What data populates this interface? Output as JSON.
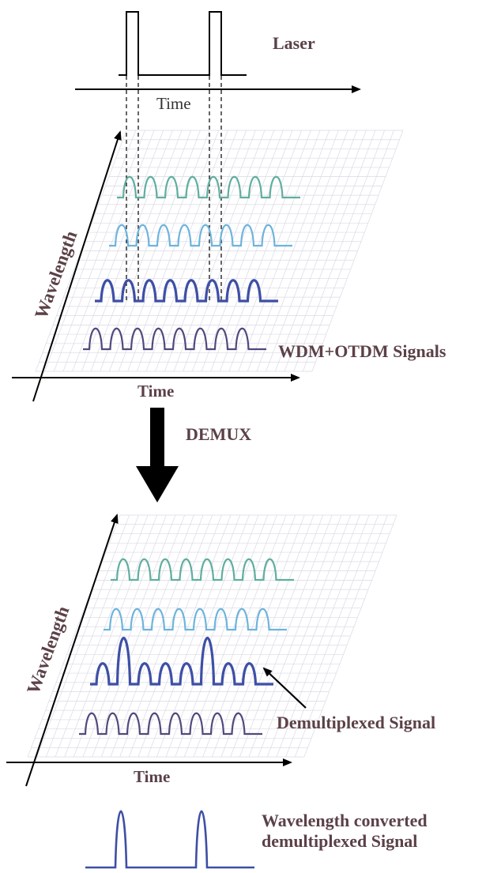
{
  "laser": {
    "label": "Laser",
    "axis_label": "Time"
  },
  "top_panel": {
    "y_axis_label": "Wavelength",
    "x_axis_label": "Time",
    "caption": "WDM+OTDM Signals"
  },
  "demux": {
    "label": "DEMUX"
  },
  "bottom_panel": {
    "y_axis_label": "Wavelength",
    "x_axis_label": "Time",
    "callout": "Demultiplexed Signal"
  },
  "output": {
    "line1": "Wavelength converted",
    "line2": "demultiplexed Signal"
  },
  "colors": {
    "teal": "#5fae9e",
    "light_blue": "#6eb4dc",
    "royal_blue": "#3e4fa5",
    "slate": "#4f4a7c",
    "label": "#5b4147"
  }
}
